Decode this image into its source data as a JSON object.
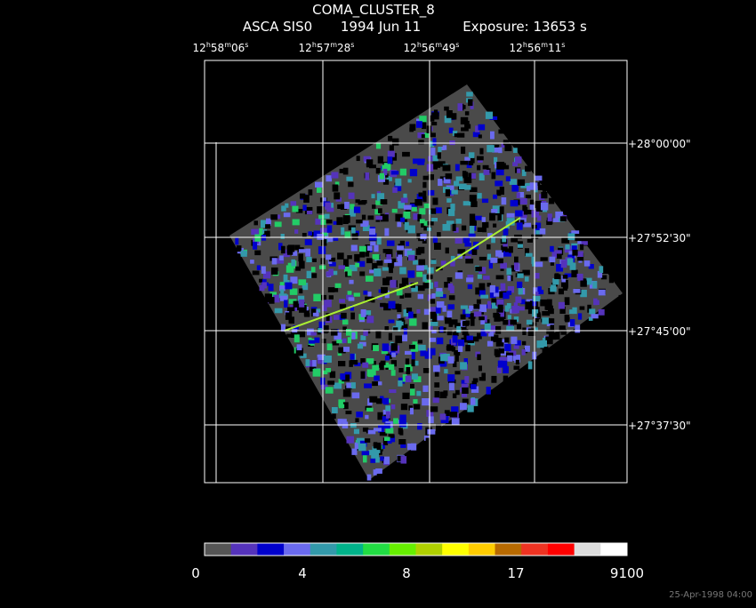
{
  "header": {
    "title": "COMA_CLUSTER_8",
    "instrument": "ASCA SIS0",
    "date": "1994 Jun 11",
    "exposure": "Exposure: 13653 s"
  },
  "ra_labels": [
    [
      "12",
      "h",
      "58",
      "m",
      "06",
      "s"
    ],
    [
      "12",
      "h",
      "57",
      "m",
      "28",
      "s"
    ],
    [
      "12",
      "h",
      "56",
      "m",
      "49",
      "s"
    ],
    [
      "12",
      "h",
      "56",
      "m",
      "11",
      "s"
    ]
  ],
  "dec_labels": [
    "+28°00'00\"",
    "+27°52'30\"",
    "+27°45'00\"",
    "+27°37'30\""
  ],
  "colorbar": {
    "colors": [
      "#555555",
      "#5533bb",
      "#0000cc",
      "#6a6aee",
      "#3399aa",
      "#00b38a",
      "#22dd44",
      "#66ee00",
      "#b0d000",
      "#ffff00",
      "#ffcc00",
      "#b86a00",
      "#ee3322",
      "#ff0000",
      "#dddddd",
      "#ffffff"
    ],
    "labels": [
      "0",
      "4",
      "8",
      "17",
      "9100"
    ]
  },
  "timestamp": "25-Apr-1998 04:00"
}
